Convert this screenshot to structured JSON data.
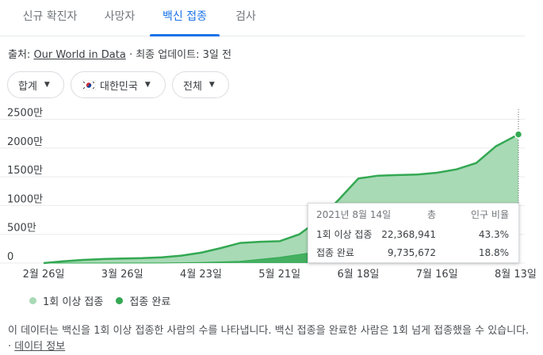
{
  "tabs": [
    {
      "label": "신규 확진자"
    },
    {
      "label": "사망자"
    },
    {
      "label": "백신 접종"
    },
    {
      "label": "검사"
    }
  ],
  "source": {
    "prefix": "출처:",
    "link": "Our World in Data",
    "suffix": " · 최종 업데이트: 3일 전"
  },
  "filters": {
    "metric": "합계",
    "country": "대한민국",
    "population": "전체"
  },
  "chart_data": {
    "type": "area",
    "x_ticks": [
      "2월 26일",
      "3월 26일",
      "4월 23일",
      "5월 21일",
      "6월 18일",
      "7월 16일",
      "8월 13일"
    ],
    "y_ticks": [
      "0",
      "500만",
      "1000만",
      "1500만",
      "2000만",
      "2500만"
    ],
    "ylim": [
      0,
      27000000
    ],
    "x_start": "2021-02-26",
    "x_end": "2021-08-14",
    "series": [
      {
        "name": "1회 이상 접종",
        "color": "#a8dab5",
        "stroke": "#34a853",
        "points": [
          [
            "2021-02-26",
            0
          ],
          [
            "2021-03-05",
            300000
          ],
          [
            "2021-03-12",
            550000
          ],
          [
            "2021-03-19",
            700000
          ],
          [
            "2021-03-26",
            800000
          ],
          [
            "2021-04-02",
            850000
          ],
          [
            "2021-04-09",
            1000000
          ],
          [
            "2021-04-16",
            1300000
          ],
          [
            "2021-04-23",
            1800000
          ],
          [
            "2021-04-30",
            2600000
          ],
          [
            "2021-05-07",
            3500000
          ],
          [
            "2021-05-14",
            3700000
          ],
          [
            "2021-05-21",
            3800000
          ],
          [
            "2021-05-28",
            5000000
          ],
          [
            "2021-06-04",
            7500000
          ],
          [
            "2021-06-11",
            11000000
          ],
          [
            "2021-06-18",
            14700000
          ],
          [
            "2021-06-25",
            15200000
          ],
          [
            "2021-07-02",
            15300000
          ],
          [
            "2021-07-09",
            15400000
          ],
          [
            "2021-07-16",
            15700000
          ],
          [
            "2021-07-23",
            16300000
          ],
          [
            "2021-07-30",
            17400000
          ],
          [
            "2021-08-06",
            20300000
          ],
          [
            "2021-08-14",
            22368941
          ]
        ]
      },
      {
        "name": "접종 완료",
        "color": "#34a853",
        "stroke": "#34a853",
        "points": [
          [
            "2021-02-26",
            0
          ],
          [
            "2021-03-19",
            0
          ],
          [
            "2021-04-09",
            20000
          ],
          [
            "2021-04-23",
            100000
          ],
          [
            "2021-05-07",
            300000
          ],
          [
            "2021-05-21",
            1000000
          ],
          [
            "2021-06-04",
            2000000
          ],
          [
            "2021-06-18",
            4000000
          ],
          [
            "2021-07-02",
            4600000
          ],
          [
            "2021-07-16",
            5500000
          ],
          [
            "2021-07-30",
            6600000
          ],
          [
            "2021-08-14",
            9735672
          ]
        ]
      }
    ]
  },
  "legend": [
    {
      "label": "1회 이상 접종",
      "color": "#a8dab5"
    },
    {
      "label": "접종 완료",
      "color": "#34a853"
    }
  ],
  "tooltip": {
    "date": "2021년 8월 14일",
    "col_total": "총",
    "col_ratio": "인구 비율",
    "rows": [
      {
        "label": "1회 이상 접종",
        "total": "22,368,941",
        "ratio": "43.3%"
      },
      {
        "label": "접종 완료",
        "total": "9,735,672",
        "ratio": "18.8%"
      }
    ]
  },
  "note": {
    "text": "이 데이터는 백신을 1회 이상 접종한 사람의 수를 나타냅니다. 백신 접종을 완료한 사람은 1회 넘게 접종했을 수 있습니다. · ",
    "link": "데이터 정보"
  }
}
